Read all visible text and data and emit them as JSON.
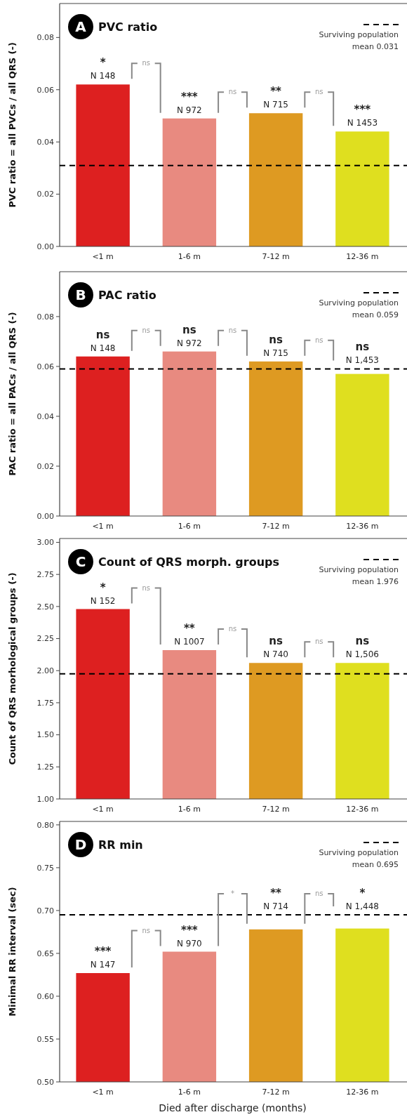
{
  "chart_data": [
    {
      "type": "bar",
      "title": "PVC ratio",
      "ylabel": "PVC ratio = all PVCs / all QRS (-)",
      "categories": [
        "<1 m",
        "1-6 m",
        "7-12 m",
        "12-36 m"
      ],
      "values": [
        0.062,
        0.049,
        0.051,
        0.044
      ],
      "colors": [
        "#dd2020",
        "#e88a80",
        "#de9a22",
        "#dfdf1f"
      ],
      "ylim": [
        0,
        0.093
      ],
      "yticks": [
        {
          "value": 0,
          "label": "0.00"
        },
        {
          "value": 0.02,
          "label": "0.02"
        },
        {
          "value": 0.04,
          "label": "0.04"
        },
        {
          "value": 0.06,
          "label": "0.06"
        },
        {
          "value": 0.08,
          "label": "0.08"
        }
      ],
      "grid": false,
      "ref_lines": [
        {
          "axis": "y",
          "value": 0.031,
          "label": "Surviving population mean 0.031",
          "line_style": "dashed",
          "color": "#000000"
        }
      ],
      "annotations": [
        "A",
        {
          "text": "*",
          "x": "<1 m",
          "y": 0.062
        },
        {
          "text": "N 148",
          "x": "<1 m",
          "y": 0.062
        },
        {
          "text": "***",
          "x": "1-6 m",
          "y": 0.049
        },
        {
          "text": "N 972",
          "x": "1-6 m",
          "y": 0.049
        },
        {
          "text": "**",
          "x": "7-12 m",
          "y": 0.051
        },
        {
          "text": "N 715",
          "x": "7-12 m",
          "y": 0.051
        },
        {
          "text": "***",
          "x": "12-36 m",
          "y": 0.044
        },
        {
          "text": "N 1453",
          "x": "12-36 m",
          "y": 0.044
        },
        "ns",
        "ns",
        "ns"
      ]
    },
    {
      "type": "bar",
      "title": "PAC ratio",
      "ylabel": "PAC ratio = all PACs / all QRS (-)",
      "categories": [
        "<1 m",
        "1-6 m",
        "7-12 m",
        "12-36 m"
      ],
      "values": [
        0.064,
        0.066,
        0.062,
        0.057
      ],
      "colors": [
        "#dd2020",
        "#e88a80",
        "#de9a22",
        "#dfdf1f"
      ],
      "ylim": [
        0,
        0.098
      ],
      "yticks": [
        {
          "value": 0,
          "label": "0.00"
        },
        {
          "value": 0.02,
          "label": "0.02"
        },
        {
          "value": 0.04,
          "label": "0.04"
        },
        {
          "value": 0.06,
          "label": "0.06"
        },
        {
          "value": 0.08,
          "label": "0.08"
        }
      ],
      "grid": false,
      "ref_lines": [
        {
          "axis": "y",
          "value": 0.059,
          "label": "Surviving population mean 0.059",
          "line_style": "dashed",
          "color": "#000000"
        }
      ],
      "annotations": [
        "B",
        {
          "text": "ns",
          "x": "<1 m",
          "y": 0.064
        },
        {
          "text": "N 148",
          "x": "<1 m",
          "y": 0.064
        },
        {
          "text": "ns",
          "x": "1-6 m",
          "y": 0.066
        },
        {
          "text": "N 972",
          "x": "1-6 m",
          "y": 0.066
        },
        {
          "text": "ns",
          "x": "7-12 m",
          "y": 0.062
        },
        {
          "text": "N 715",
          "x": "7-12 m",
          "y": 0.062
        },
        {
          "text": "ns",
          "x": "12-36 m",
          "y": 0.057
        },
        {
          "text": "N 1,453",
          "x": "12-36 m",
          "y": 0.057
        },
        "ns",
        "ns",
        "ns"
      ]
    },
    {
      "type": "bar",
      "title": "Count of QRS morph. groups",
      "ylabel": "Count of QRS morhological groups (-)",
      "categories": [
        "<1 m",
        "1-6 m",
        "7-12 m",
        "12-36 m"
      ],
      "values": [
        2.48,
        2.16,
        2.06,
        2.06
      ],
      "colors": [
        "#dd2020",
        "#e88a80",
        "#de9a22",
        "#dfdf1f"
      ],
      "ylim": [
        1,
        3.03
      ],
      "yticks": [
        {
          "value": 1,
          "label": "1.00"
        },
        {
          "value": 1.25,
          "label": "1.25"
        },
        {
          "value": 1.5,
          "label": "1.50"
        },
        {
          "value": 1.75,
          "label": "1.75"
        },
        {
          "value": 2,
          "label": "2.00"
        },
        {
          "value": 2.25,
          "label": "2.25"
        },
        {
          "value": 2.5,
          "label": "2.50"
        },
        {
          "value": 2.75,
          "label": "2.75"
        },
        {
          "value": 3,
          "label": "3.00"
        }
      ],
      "grid": false,
      "ref_lines": [
        {
          "axis": "y",
          "value": 1.976,
          "label": "Surviving population mean 1.976",
          "line_style": "dashed",
          "color": "#000000"
        }
      ],
      "annotations": [
        "C",
        {
          "text": "*",
          "x": "<1 m",
          "y": 2.48
        },
        {
          "text": "N 152",
          "x": "<1 m",
          "y": 2.48
        },
        {
          "text": "**",
          "x": "1-6 m",
          "y": 2.16
        },
        {
          "text": "N 1007",
          "x": "1-6 m",
          "y": 2.16
        },
        {
          "text": "ns",
          "x": "7-12 m",
          "y": 2.06
        },
        {
          "text": "N 740",
          "x": "7-12 m",
          "y": 2.06
        },
        {
          "text": "ns",
          "x": "12-36 m",
          "y": 2.06
        },
        {
          "text": "N 1,506",
          "x": "12-36 m",
          "y": 2.06
        },
        "ns",
        "ns",
        "ns"
      ]
    },
    {
      "type": "bar",
      "title": "RR min",
      "ylabel": "Minimal RR interval (sec)",
      "xlabel": "Died after discharge (months)",
      "categories": [
        "<1 m",
        "1-6 m",
        "7-12 m",
        "12-36 m"
      ],
      "values": [
        0.627,
        0.652,
        0.678,
        0.679
      ],
      "colors": [
        "#dd2020",
        "#e88a80",
        "#de9a22",
        "#dfdf1f"
      ],
      "ylim": [
        0.5,
        0.804
      ],
      "yticks": [
        {
          "value": 0.5,
          "label": "0.50"
        },
        {
          "value": 0.55,
          "label": "0.55"
        },
        {
          "value": 0.6,
          "label": "0.60"
        },
        {
          "value": 0.65,
          "label": "0.65"
        },
        {
          "value": 0.7,
          "label": "0.70"
        },
        {
          "value": 0.75,
          "label": "0.75"
        },
        {
          "value": 0.8,
          "label": "0.80"
        }
      ],
      "grid": false,
      "ref_lines": [
        {
          "axis": "y",
          "value": 0.695,
          "label": "Surviving population mean 0.695",
          "line_style": "dashed",
          "color": "#000000"
        }
      ],
      "annotations": [
        "D",
        {
          "text": "***",
          "x": "<1 m",
          "y": 0.627
        },
        {
          "text": "N 147",
          "x": "<1 m",
          "y": 0.627
        },
        {
          "text": "***",
          "x": "1-6 m",
          "y": 0.652
        },
        {
          "text": "N 970",
          "x": "1-6 m",
          "y": 0.652
        },
        {
          "text": "**",
          "x": "7-12 m",
          "y": 0.678
        },
        {
          "text": "N 714",
          "x": "7-12 m",
          "y": 0.678
        },
        {
          "text": "*",
          "x": "12-36 m",
          "y": 0.679
        },
        {
          "text": "N 1,448",
          "x": "12-36 m",
          "y": 0.679
        },
        "ns",
        "*",
        "ns"
      ]
    }
  ]
}
